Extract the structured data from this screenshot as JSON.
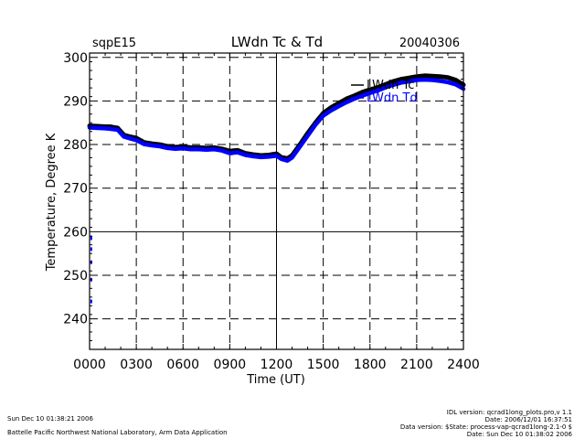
{
  "chart_data": {
    "type": "line",
    "title": "LWdn Tc & Td",
    "site": "sqpE15",
    "date": "20040306",
    "xlabel": "Time (UT)",
    "ylabel": "Temperature, Degree K",
    "x_tick_labels": [
      "0000",
      "0300",
      "0600",
      "0900",
      "1200",
      "1500",
      "1800",
      "2100",
      "2400"
    ],
    "y_tick_labels": [
      "240",
      "250",
      "260",
      "270",
      "280",
      "290",
      "300"
    ],
    "xlim": [
      0,
      24
    ],
    "ylim": [
      233,
      301
    ],
    "grid": true,
    "legend_position": "top-right",
    "series": [
      {
        "name": "LWdn Tc",
        "color": "#000000",
        "x": [
          0.0,
          0.5,
          1.0,
          1.3,
          1.8,
          2.2,
          2.6,
          3.0,
          3.5,
          4.0,
          4.5,
          5.0,
          5.5,
          6.0,
          6.5,
          7.0,
          7.5,
          8.0,
          8.5,
          9.0,
          9.5,
          10.0,
          10.5,
          11.0,
          11.5,
          12.0,
          12.3,
          12.7,
          13.0,
          13.3,
          13.6,
          14.0,
          14.5,
          15.0,
          15.5,
          16.0,
          16.5,
          17.0,
          17.5,
          18.0,
          18.5,
          19.0,
          19.5,
          20.0,
          20.5,
          21.0,
          21.5,
          22.0,
          22.5,
          23.0,
          23.5,
          24.0
        ],
        "y": [
          284.3,
          284.2,
          284.1,
          284.1,
          283.8,
          282.2,
          281.8,
          281.5,
          280.5,
          280.2,
          280.0,
          279.6,
          279.4,
          279.5,
          279.3,
          279.3,
          279.2,
          279.3,
          279.0,
          278.5,
          278.7,
          278.0,
          277.7,
          277.5,
          277.6,
          277.9,
          277.1,
          276.8,
          277.5,
          279.0,
          280.5,
          282.6,
          285.0,
          287.2,
          288.5,
          289.5,
          290.5,
          291.2,
          292.0,
          292.6,
          293.1,
          293.8,
          294.5,
          295.0,
          295.3,
          295.6,
          295.8,
          295.7,
          295.6,
          295.4,
          294.8,
          293.7
        ]
      },
      {
        "name": "LWdn Td",
        "color": "#0000ff",
        "x": [
          0.0,
          0.5,
          1.0,
          1.3,
          1.8,
          2.2,
          2.6,
          3.0,
          3.5,
          4.0,
          4.5,
          5.0,
          5.5,
          6.0,
          6.5,
          7.0,
          7.5,
          8.0,
          8.5,
          9.0,
          9.5,
          10.0,
          10.5,
          11.0,
          11.5,
          12.0,
          12.3,
          12.7,
          13.0,
          13.3,
          13.6,
          14.0,
          14.5,
          15.0,
          15.5,
          16.0,
          16.5,
          17.0,
          17.5,
          18.0,
          18.5,
          19.0,
          19.5,
          20.0,
          20.5,
          21.0,
          21.5,
          22.0,
          22.5,
          23.0,
          23.5,
          24.0
        ],
        "y": [
          283.9,
          283.8,
          283.7,
          283.6,
          283.4,
          281.8,
          281.4,
          281.0,
          280.1,
          279.8,
          279.6,
          279.2,
          279.0,
          279.1,
          278.9,
          278.9,
          278.8,
          278.9,
          278.6,
          278.0,
          278.2,
          277.6,
          277.3,
          277.1,
          277.2,
          277.4,
          276.7,
          276.3,
          277.0,
          278.5,
          280.0,
          282.0,
          284.5,
          286.6,
          287.8,
          288.8,
          289.7,
          290.5,
          291.2,
          291.8,
          292.4,
          293.1,
          293.7,
          294.2,
          294.5,
          294.8,
          294.9,
          294.8,
          294.6,
          294.3,
          293.8,
          292.8
        ]
      }
    ],
    "sparse_marks": [
      {
        "x": 0.05,
        "y": 258.5,
        "color": "#0000ff"
      },
      {
        "x": 0.05,
        "y": 256.0,
        "color": "#0000ff"
      },
      {
        "x": 0.05,
        "y": 253.0,
        "color": "#0000ff"
      },
      {
        "x": 0.05,
        "y": 249.0,
        "color": "#0000ff"
      },
      {
        "x": 0.05,
        "y": 244.0,
        "color": "#0000ff"
      }
    ]
  },
  "footer": {
    "left_line1": "Sun Dec 10 01:38:21 2006",
    "left_line2": "Battelle Pacific Northwest National Laboratory, Arm Data Application",
    "right_line1": "IDL version: qcrad1long_plots.pro,v 1.1",
    "right_line2": "Date: 2006/12/01 16:37:51",
    "right_line3": "Data version: $State: process-vap-qcrad1long-2.1-0 $",
    "right_line4": "Date: Sun Dec 10 01:38:02 2006"
  }
}
